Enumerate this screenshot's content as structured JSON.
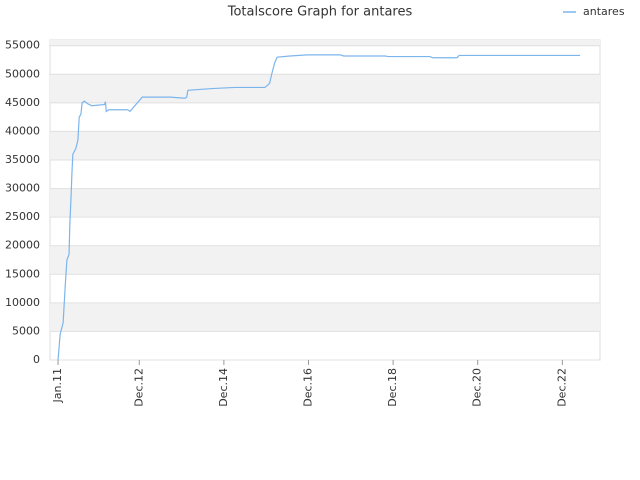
{
  "chart_data": {
    "type": "line",
    "title": "Totalscore Graph for antares",
    "x": [
      2011.0,
      2011.05,
      2011.12,
      2011.17,
      2011.21,
      2011.26,
      2011.28,
      2011.31,
      2011.33,
      2011.35,
      2011.42,
      2011.47,
      2011.5,
      2011.54,
      2011.57,
      2011.62,
      2011.71,
      2011.8,
      2011.95,
      2012.1,
      2012.12,
      2012.14,
      2012.2,
      2012.65,
      2012.7,
      2012.99,
      2013.65,
      2014.0,
      2014.04,
      2014.07,
      2014.64,
      2015.18,
      2015.89,
      2016.0,
      2016.05,
      2016.12,
      2016.18,
      2016.48,
      2016.89,
      2017.67,
      2017.75,
      2018.73,
      2018.8,
      2019.79,
      2019.85,
      2020.43,
      2020.48,
      2023.34
    ],
    "series": [
      {
        "name": "antares",
        "color": "#7cb5ec",
        "values": [
          0,
          4500,
          6500,
          13000,
          17500,
          18500,
          24000,
          29000,
          33000,
          36000,
          37000,
          38500,
          42500,
          43000,
          45000,
          45300,
          44800,
          44500,
          44600,
          44700,
          45200,
          43500,
          43800,
          43800,
          43500,
          46000,
          46000,
          45800,
          46000,
          47200,
          47500,
          47700,
          47700,
          48400,
          50000,
          52000,
          53000,
          53200,
          53400,
          53400,
          53200,
          53200,
          53100,
          53100,
          52900,
          52900,
          53300,
          53300
        ]
      }
    ],
    "xlim": [
      2010.81,
      2023.81
    ],
    "xticks": [
      {
        "value": 2011.0,
        "label": "Jan.11"
      },
      {
        "value": 2012.92,
        "label": "Dec.12"
      },
      {
        "value": 2014.92,
        "label": "Dec.14"
      },
      {
        "value": 2016.92,
        "label": "Dec.16"
      },
      {
        "value": 2018.92,
        "label": "Dec.18"
      },
      {
        "value": 2020.92,
        "label": "Dec.20"
      },
      {
        "value": 2022.92,
        "label": "Dec.22"
      }
    ],
    "ylim": [
      0,
      56000
    ],
    "yticks": [
      0,
      5000,
      10000,
      15000,
      20000,
      25000,
      30000,
      35000,
      40000,
      45000,
      50000,
      55000
    ],
    "grid": true,
    "legend": "top-right"
  }
}
